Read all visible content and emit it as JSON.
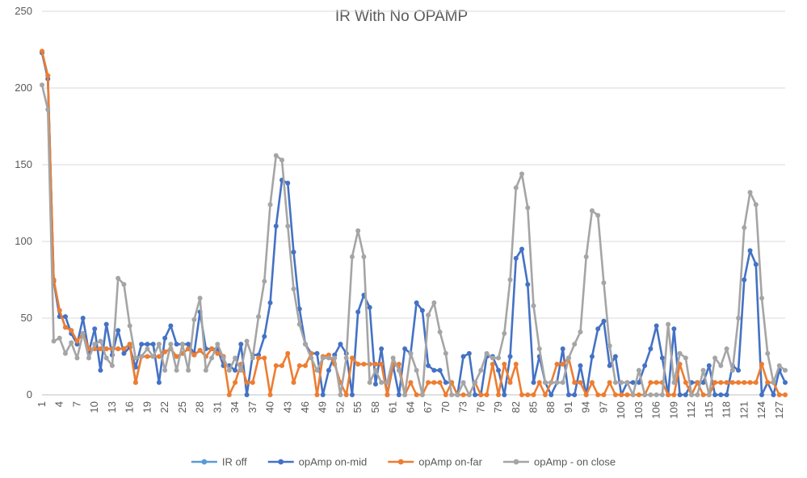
{
  "chart_data": {
    "type": "line",
    "title": "IR With No OPAMP",
    "xlabel": "",
    "ylabel": "",
    "ylim": [
      0,
      250
    ],
    "yticks": [
      0,
      50,
      100,
      150,
      200,
      250
    ],
    "x_range": [
      1,
      128
    ],
    "x_tick_labels": [
      "1",
      "4",
      "7",
      "10",
      "13",
      "16",
      "19",
      "22",
      "25",
      "28",
      "31",
      "34",
      "37",
      "40",
      "43",
      "46",
      "49",
      "52",
      "55",
      "58",
      "61",
      "64",
      "67",
      "70",
      "73",
      "76",
      "79",
      "82",
      "85",
      "88",
      "91",
      "94",
      "97",
      "100",
      "103",
      "106",
      "109",
      "112",
      "115",
      "118",
      "121",
      "124",
      "127"
    ],
    "grid": "horizontal",
    "legend_position": "bottom",
    "series": [
      {
        "name": "IR off",
        "color": "#5b9bd5",
        "values": [
          223,
          208,
          75,
          55,
          44,
          42,
          35,
          40,
          30,
          30,
          30,
          30,
          30,
          30,
          30,
          33,
          8,
          25,
          25,
          25,
          25,
          28,
          30,
          25,
          27,
          30,
          26,
          29,
          25,
          30,
          27,
          25
        ]
      },
      {
        "name": "opAmp on-mid",
        "color": "#4472c4",
        "values": [
          223,
          206,
          74,
          51,
          51,
          40,
          33,
          50,
          28,
          43,
          16,
          46,
          26,
          42,
          27,
          31,
          18,
          33,
          33,
          33,
          8,
          37,
          45,
          33,
          33,
          33,
          27,
          54,
          30,
          30,
          30,
          19,
          19,
          16,
          33,
          0,
          26,
          26,
          38,
          60,
          110,
          140,
          138,
          93,
          56,
          33,
          27,
          27,
          0,
          16,
          26,
          33,
          27,
          0,
          54,
          65,
          57,
          7,
          30,
          0,
          19,
          0,
          30,
          27,
          60,
          55,
          19,
          16,
          16,
          8,
          8,
          0,
          25,
          27,
          0,
          0,
          25,
          25,
          16,
          0,
          25,
          89,
          95,
          72,
          8,
          25,
          8,
          0,
          8,
          30,
          0,
          0,
          19,
          0,
          25,
          43,
          48,
          19,
          25,
          0,
          8,
          8,
          8,
          19,
          30,
          45,
          24,
          0,
          43,
          0,
          0,
          8,
          8,
          8,
          19,
          0,
          0,
          0,
          19,
          16,
          75,
          94,
          85,
          0,
          8,
          0,
          16,
          8
        ]
      },
      {
        "name": "opAmp on-far",
        "color": "#ed7d31",
        "values": [
          224,
          208,
          75,
          55,
          44,
          42,
          35,
          40,
          30,
          30,
          30,
          30,
          30,
          30,
          30,
          33,
          8,
          25,
          25,
          25,
          25,
          28,
          30,
          25,
          27,
          30,
          26,
          29,
          25,
          30,
          27,
          25,
          0,
          8,
          20,
          8,
          8,
          24,
          24,
          0,
          19,
          19,
          27,
          8,
          19,
          19,
          27,
          0,
          25,
          26,
          20,
          8,
          0,
          24,
          20,
          20,
          20,
          20,
          20,
          0,
          20,
          20,
          0,
          8,
          0,
          0,
          8,
          8,
          8,
          0,
          8,
          0,
          0,
          0,
          8,
          0,
          0,
          20,
          0,
          20,
          8,
          20,
          0,
          0,
          0,
          8,
          0,
          8,
          20,
          20,
          24,
          8,
          8,
          0,
          8,
          0,
          0,
          8,
          0,
          0,
          0,
          0,
          0,
          0,
          8,
          8,
          8,
          0,
          0,
          20,
          8,
          0,
          8,
          0,
          0,
          8,
          8,
          8,
          8,
          8,
          8,
          8,
          8,
          20,
          8,
          8,
          0,
          0
        ]
      },
      {
        "name": "opAmp - on close",
        "color": "#a5a5a5",
        "values": [
          202,
          186,
          35,
          37,
          27,
          34,
          24,
          40,
          24,
          33,
          35,
          24,
          19,
          76,
          72,
          45,
          24,
          25,
          30,
          25,
          33,
          16,
          33,
          16,
          33,
          16,
          49,
          63,
          16,
          24,
          33,
          24,
          16,
          24,
          16,
          35,
          24,
          51,
          74,
          124,
          156,
          153,
          110,
          69,
          46,
          33,
          24,
          16,
          24,
          24,
          24,
          0,
          24,
          90,
          107,
          90,
          8,
          16,
          8,
          8,
          24,
          16,
          0,
          27,
          16,
          0,
          52,
          60,
          41,
          27,
          0,
          0,
          8,
          0,
          8,
          16,
          27,
          24,
          24,
          40,
          75,
          135,
          144,
          122,
          58,
          30,
          8,
          8,
          8,
          8,
          24,
          33,
          41,
          90,
          120,
          117,
          73,
          32,
          8,
          8,
          8,
          0,
          16,
          0,
          0,
          0,
          0,
          46,
          8,
          27,
          24,
          0,
          0,
          16,
          0,
          24,
          19,
          30,
          16,
          50,
          109,
          132,
          124,
          63,
          27,
          8,
          19,
          16
        ]
      }
    ]
  }
}
